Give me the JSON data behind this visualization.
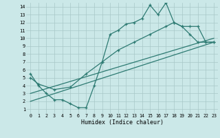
{
  "xlabel": "Humidex (Indice chaleur)",
  "bg_color": "#cbe8e8",
  "grid_color": "#a8c8c8",
  "line_color": "#2d7a72",
  "xlim": [
    -0.5,
    23.5
  ],
  "ylim": [
    0.5,
    14.5
  ],
  "xticks": [
    0,
    1,
    2,
    3,
    4,
    5,
    6,
    7,
    8,
    9,
    10,
    11,
    12,
    13,
    14,
    15,
    16,
    17,
    18,
    19,
    20,
    21,
    22,
    23
  ],
  "yticks": [
    1,
    2,
    3,
    4,
    5,
    6,
    7,
    8,
    9,
    10,
    11,
    12,
    13,
    14
  ],
  "line1_x": [
    0,
    1,
    2,
    3,
    4,
    5,
    6,
    7,
    8,
    9,
    10,
    11,
    12,
    13,
    14,
    15,
    16,
    17,
    18,
    19,
    20,
    21,
    22,
    23
  ],
  "line1_y": [
    5.5,
    4.0,
    3.0,
    2.2,
    2.2,
    1.7,
    1.2,
    1.2,
    4.0,
    7.0,
    10.5,
    11.0,
    11.8,
    12.0,
    12.5,
    14.2,
    13.0,
    14.5,
    12.0,
    11.5,
    10.5,
    9.5,
    9.5,
    9.5
  ],
  "line2_x": [
    0,
    1,
    3,
    5,
    7,
    9,
    11,
    13,
    15,
    17,
    18,
    19,
    20,
    21,
    22,
    23
  ],
  "line2_y": [
    5.0,
    4.2,
    3.5,
    3.8,
    5.5,
    7.0,
    8.5,
    9.5,
    10.5,
    11.5,
    12.0,
    11.5,
    11.5,
    11.5,
    9.5,
    9.5
  ],
  "line3_x": [
    0,
    23
  ],
  "line3_y": [
    2.0,
    9.5
  ],
  "line4_x": [
    0,
    23
  ],
  "line4_y": [
    3.0,
    10.0
  ]
}
